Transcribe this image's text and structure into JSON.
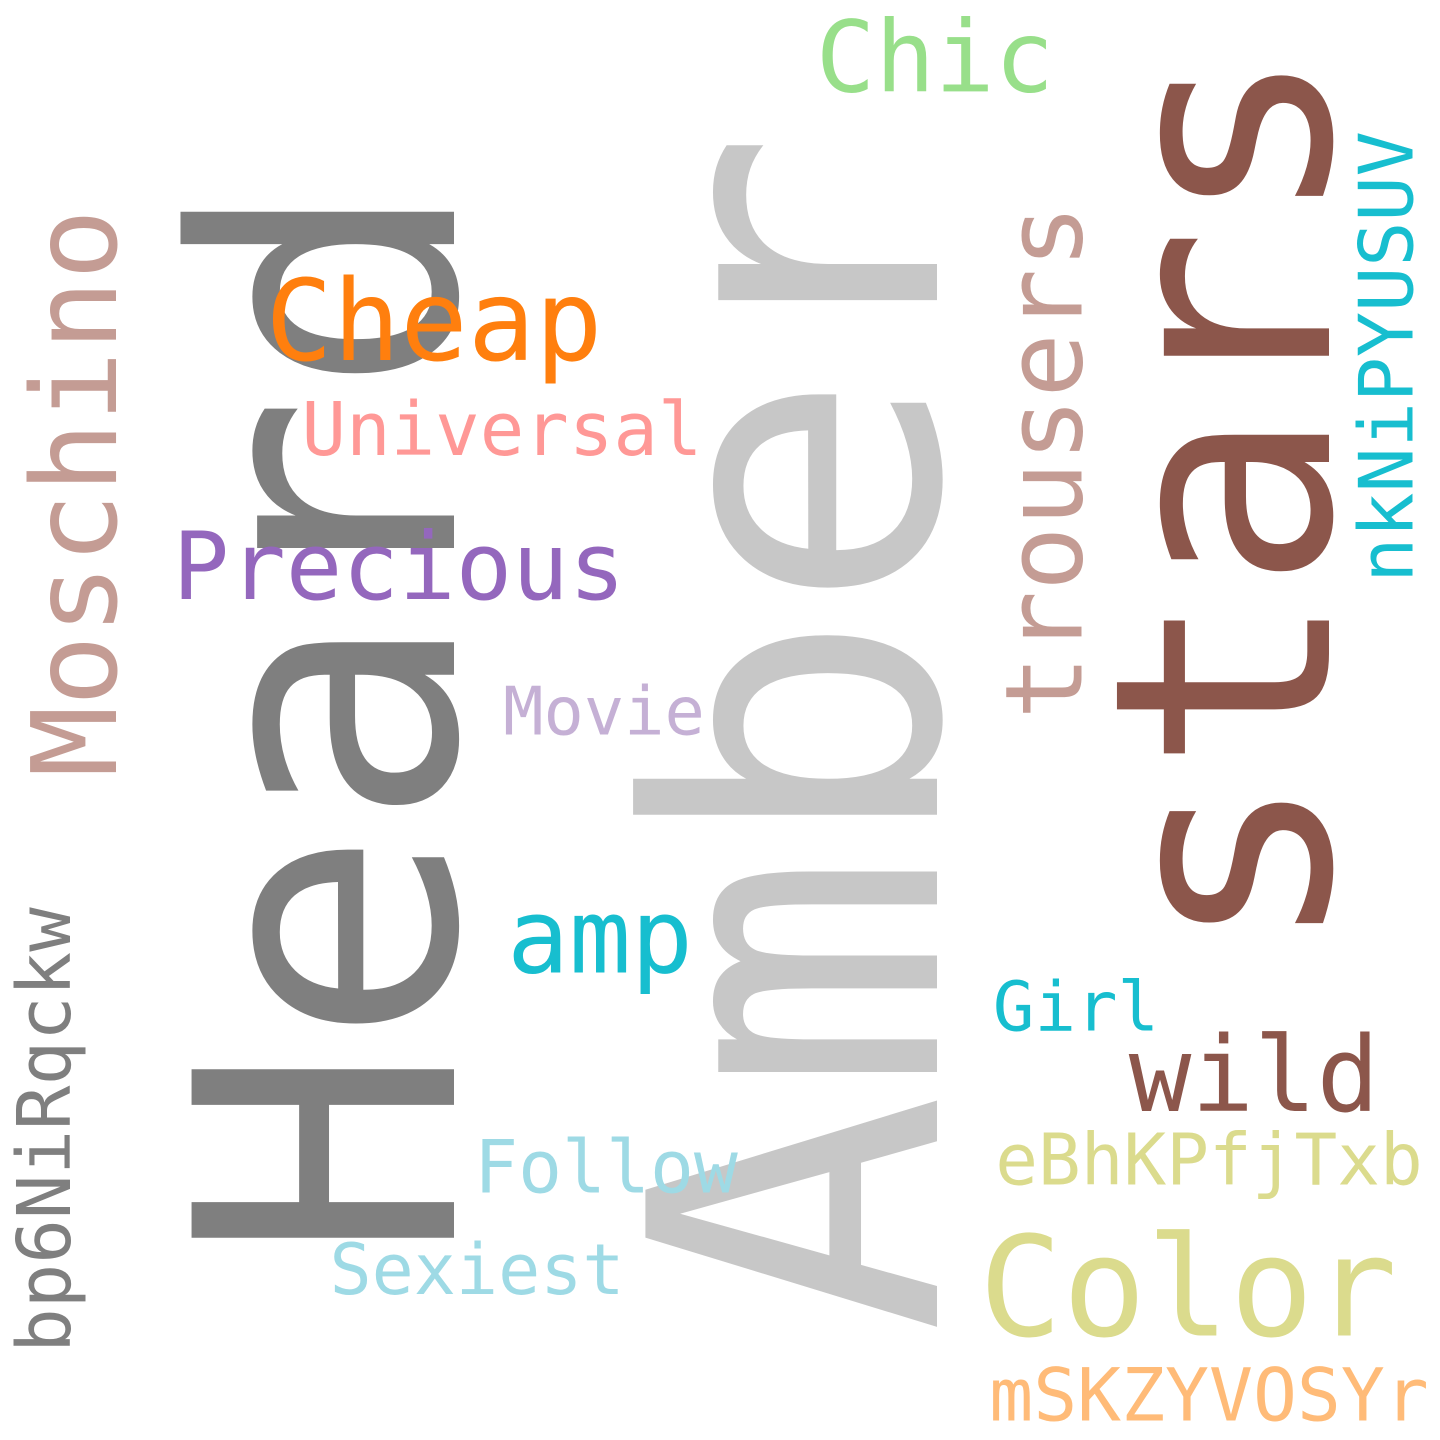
{
  "words": {
    "heard": {
      "text": "Heard",
      "color": "#7f7f7f"
    },
    "amber": {
      "text": "Amber",
      "color": "#c7c7c7"
    },
    "stars": {
      "text": "stars",
      "color": "#8c564b"
    },
    "moschino": {
      "text": "Moschino",
      "color": "#c49c94"
    },
    "cheap": {
      "text": "Cheap",
      "color": "#ff7f0e"
    },
    "chic": {
      "text": "Chic",
      "color": "#98df8a"
    },
    "universal": {
      "text": "Universal",
      "color": "#ff9896"
    },
    "precious": {
      "text": "Precious",
      "color": "#9467bd"
    },
    "trousers": {
      "text": "trousers",
      "color": "#c49c94"
    },
    "nknipyusuv": {
      "text": "nkNiPYUSUV",
      "color": "#17becf"
    },
    "movie": {
      "text": "Movie",
      "color": "#c5b0d5"
    },
    "amp": {
      "text": "amp",
      "color": "#17becf"
    },
    "bp6nirqckw": {
      "text": "bp6NiRqckw",
      "color": "#7f7f7f"
    },
    "girl": {
      "text": "Girl",
      "color": "#17becf"
    },
    "wild": {
      "text": "wild",
      "color": "#8c564b"
    },
    "follow": {
      "text": "Follow",
      "color": "#9edae5"
    },
    "ebhkpfjtxb": {
      "text": "eBhKPfjTxb",
      "color": "#dbdb8d"
    },
    "sexiest": {
      "text": "Sexiest",
      "color": "#9edae5"
    },
    "color": {
      "text": "Color",
      "color": "#dbdb8d"
    },
    "mskzyvosyr": {
      "text": "mSKZYVOSYr",
      "color": "#ffbb78"
    }
  }
}
